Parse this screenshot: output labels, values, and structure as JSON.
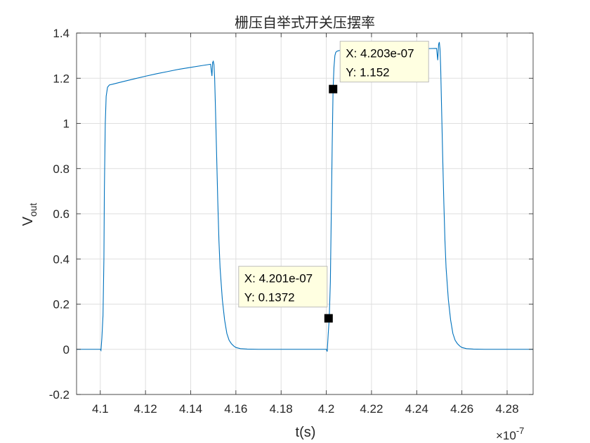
{
  "chart_data": {
    "type": "line",
    "title": "栅压自举式开关压摆率",
    "xlabel": "t(s)",
    "ylabel_main": "V",
    "ylabel_sub": "out",
    "x_exponent_base": "×10",
    "x_exponent_power": "-7",
    "xlim": [
      4.0895,
      4.2915
    ],
    "ylim": [
      -0.2,
      1.4
    ],
    "xticks": [
      4.1,
      4.12,
      4.14,
      4.16,
      4.18,
      4.2,
      4.22,
      4.24,
      4.26,
      4.28
    ],
    "xtick_labels": [
      "4.1",
      "4.12",
      "4.14",
      "4.16",
      "4.18",
      "4.2",
      "4.22",
      "4.24",
      "4.26",
      "4.28"
    ],
    "yticks": [
      -0.2,
      0,
      0.2,
      0.4,
      0.6,
      0.8,
      1.0,
      1.2,
      1.4
    ],
    "ytick_labels": [
      "-0.2",
      "0",
      "0.2",
      "0.4",
      "0.6",
      "0.8",
      "1",
      "1.2",
      "1.4"
    ],
    "grid": true,
    "line_color": "#0072BD",
    "series": [
      {
        "x": [
          4.0895,
          4.1,
          4.1003,
          4.1007,
          4.1012,
          4.1016,
          4.1018,
          4.1022,
          4.1026,
          4.1032,
          4.104,
          4.106,
          4.11,
          4.115,
          4.12,
          4.125,
          4.13,
          4.135,
          4.14,
          4.145,
          4.1488,
          4.1494,
          4.1497,
          4.15,
          4.1503,
          4.1506,
          4.151,
          4.1515,
          4.152,
          4.1525,
          4.153,
          4.154,
          4.155,
          4.156,
          4.157,
          4.158,
          4.159,
          4.16,
          4.162,
          4.165,
          4.17,
          4.18,
          4.19,
          4.2,
          4.2004,
          4.2008,
          4.2013,
          4.2018,
          4.2022,
          4.2026,
          4.203,
          4.2034,
          4.2038,
          4.2042,
          4.2048,
          4.2055,
          4.207,
          4.21,
          4.22,
          4.23,
          4.24,
          4.2488,
          4.2493,
          4.2497,
          4.25,
          4.2503,
          4.2506,
          4.251,
          4.2515,
          4.252,
          4.2525,
          4.253,
          4.254,
          4.255,
          4.256,
          4.257,
          4.258,
          4.259,
          4.26,
          4.262,
          4.265,
          4.27,
          4.28,
          4.29,
          4.2915
        ],
        "y": [
          0.0,
          0.0,
          -0.005,
          0.05,
          0.15,
          0.4,
          0.7,
          1.0,
          1.12,
          1.16,
          1.17,
          1.175,
          1.185,
          1.197,
          1.209,
          1.22,
          1.23,
          1.24,
          1.248,
          1.256,
          1.262,
          1.21,
          1.27,
          1.275,
          1.26,
          1.2,
          1.05,
          0.85,
          0.65,
          0.48,
          0.36,
          0.22,
          0.13,
          0.07,
          0.04,
          0.025,
          0.015,
          0.008,
          0.003,
          0.001,
          0.0,
          0.0,
          0.0,
          0.0,
          -0.01,
          0.06,
          0.1372,
          0.3,
          0.6,
          0.9,
          1.152,
          1.25,
          1.3,
          1.315,
          1.32,
          1.322,
          1.325,
          1.325,
          1.325,
          1.328,
          1.33,
          1.332,
          1.28,
          1.35,
          1.36,
          1.33,
          1.25,
          1.07,
          0.85,
          0.65,
          0.48,
          0.36,
          0.22,
          0.13,
          0.07,
          0.04,
          0.025,
          0.015,
          0.008,
          0.003,
          0.001,
          0.0,
          0.0,
          0.0,
          0.0
        ]
      }
    ],
    "datatips": [
      {
        "marker": [
          4.203,
          1.152
        ],
        "x_text": "X: 4.203e-07",
        "y_text": "Y: 1.152",
        "position": "upper-right"
      },
      {
        "marker": [
          4.201,
          0.1372
        ],
        "x_text": "X: 4.201e-07",
        "y_text": "Y: 0.1372",
        "position": "upper-left"
      }
    ]
  }
}
